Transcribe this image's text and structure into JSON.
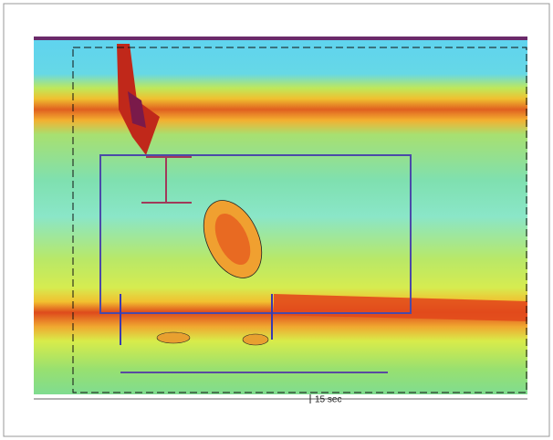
{
  "scale_label": "15 sec"
}
